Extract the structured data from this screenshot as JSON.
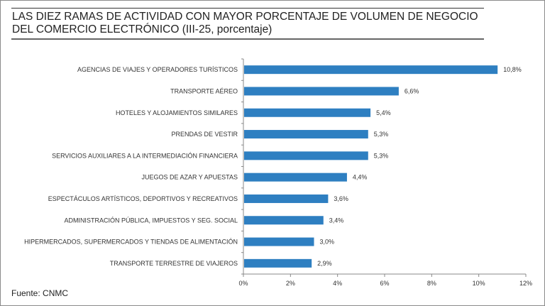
{
  "chart_data": {
    "type": "bar",
    "orientation": "horizontal",
    "title_lines": [
      "LAS DIEZ RAMAS DE ACTIVIDAD CON MAYOR PORCENTAJE DE VOLUMEN DE NEGOCIO",
      "DEL COMERCIO ELECTRÓNICO (III-25, porcentaje)"
    ],
    "categories": [
      "AGENCIAS DE VIAJES Y OPERADORES TURÍSTICOS",
      "TRANSPORTE AÉREO",
      "HOTELES  Y ALOJAMIENTOS SIMILARES",
      "PRENDAS DE VESTIR",
      "SERVICIOS AUXILIARES A LA INTERMEDIACIÓN FINANCIERA",
      "JUEGOS DE AZAR Y APUESTAS",
      "ESPECTÁCULOS ARTÍSTICOS, DEPORTIVOS Y RECREATIVOS",
      "ADMINISTRACIÓN PÚBLICA, IMPUESTOS Y SEG. SOCIAL",
      "HIPERMERCADOS, SUPERMERCADOS Y TIENDAS DE ALIMENTACIÓN",
      "TRANSPORTE TERRESTRE DE VIAJEROS"
    ],
    "values": [
      10.8,
      6.6,
      5.4,
      5.3,
      5.3,
      4.4,
      3.6,
      3.4,
      3.0,
      2.9
    ],
    "value_labels": [
      "10,8%",
      "6,6%",
      "5,4%",
      "5,3%",
      "5,3%",
      "4,4%",
      "3,6%",
      "3,4%",
      "3,0%",
      "2,9%"
    ],
    "xlim": [
      0,
      12
    ],
    "xticks": [
      0,
      2,
      4,
      6,
      8,
      10,
      12
    ],
    "xtick_labels": [
      "0%",
      "2%",
      "4%",
      "6%",
      "8%",
      "10%",
      "12%"
    ],
    "xlabel": "",
    "ylabel": "",
    "grid": false,
    "bar_color": "#2e7fc1"
  },
  "source": "Fuente: CNMC"
}
